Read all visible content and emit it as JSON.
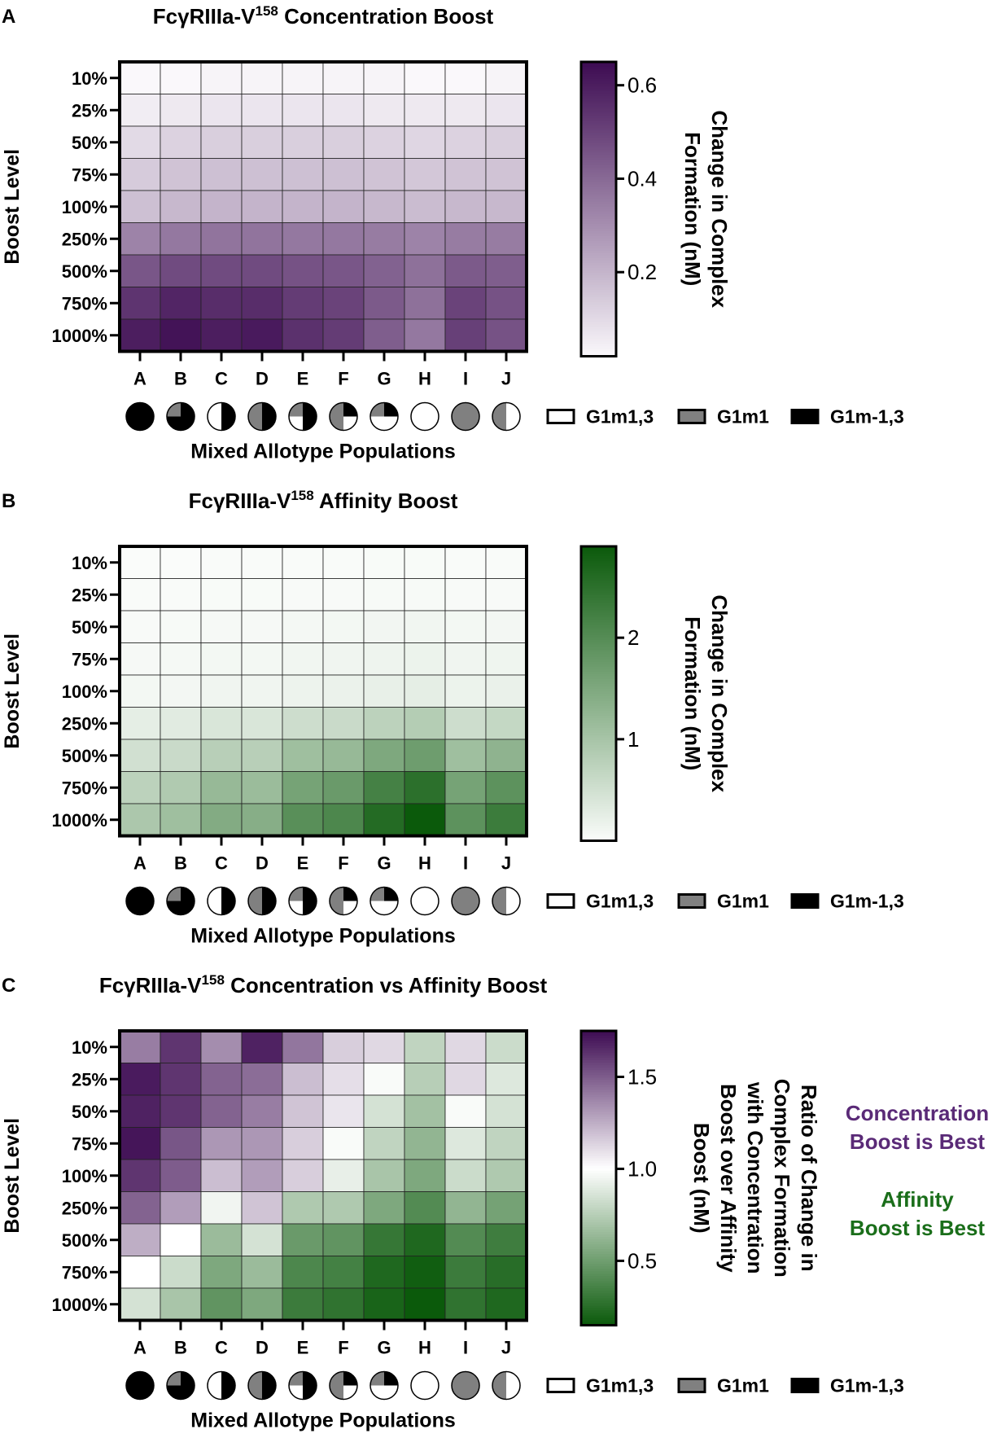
{
  "rows": [
    "10%",
    "25%",
    "50%",
    "75%",
    "100%",
    "250%",
    "500%",
    "750%",
    "1000%"
  ],
  "columns": [
    "A",
    "B",
    "C",
    "D",
    "E",
    "F",
    "G",
    "H",
    "I",
    "J"
  ],
  "pie_fractions": [
    {
      "g1m13": 0.0,
      "g1m1": 0.0,
      "g1mneg13": 1.0
    },
    {
      "g1m13": 0.0,
      "g1m1": 0.25,
      "g1mneg13": 0.75
    },
    {
      "g1m13": 0.5,
      "g1m1": 0.0,
      "g1mneg13": 0.5
    },
    {
      "g1m13": 0.0,
      "g1m1": 0.5,
      "g1mneg13": 0.5
    },
    {
      "g1m13": 0.25,
      "g1m1": 0.25,
      "g1mneg13": 0.5
    },
    {
      "g1m13": 0.25,
      "g1m1": 0.5,
      "g1mneg13": 0.25
    },
    {
      "g1m13": 0.5,
      "g1m1": 0.25,
      "g1mneg13": 0.25
    },
    {
      "g1m13": 1.0,
      "g1m1": 0.0,
      "g1mneg13": 0.0
    },
    {
      "g1m13": 0.0,
      "g1m1": 1.0,
      "g1mneg13": 0.0
    },
    {
      "g1m13": 0.5,
      "g1m1": 0.5,
      "g1mneg13": 0.0
    }
  ],
  "legend": {
    "g1m13": "G1m1,3",
    "g1m1": "G1m1",
    "g1mneg13": "G1m-1,3"
  },
  "colors": {
    "g1m13": "#ffffff",
    "g1m1": "#808080",
    "g1mneg13": "#000000"
  },
  "chart_data": [
    {
      "type": "heatmap",
      "panel_letter": "A",
      "title_pre": "FcγRIIIa-V",
      "title_sup": "158",
      "title_post": " Concentration Boost",
      "xlabel": "Mixed Allotype Populations",
      "ylabel": "Boost Level",
      "colorbar_label": [
        "Change in Complex",
        "Formation (nM)"
      ],
      "colorbar_range": [
        0.02,
        0.65
      ],
      "colorbar_ticks": [
        {
          "v": 0.6,
          "label": "0.6"
        },
        {
          "v": 0.4,
          "label": "0.4"
        },
        {
          "v": 0.2,
          "label": "0.2"
        }
      ],
      "colormap": [
        "#faf8fb",
        "#3d0b52"
      ],
      "values": [
        [
          0.02,
          0.02,
          0.03,
          0.03,
          0.03,
          0.03,
          0.03,
          0.02,
          0.02,
          0.03
        ],
        [
          0.05,
          0.06,
          0.07,
          0.07,
          0.07,
          0.07,
          0.06,
          0.06,
          0.06,
          0.07
        ],
        [
          0.1,
          0.12,
          0.13,
          0.13,
          0.13,
          0.13,
          0.12,
          0.11,
          0.12,
          0.13
        ],
        [
          0.14,
          0.16,
          0.17,
          0.17,
          0.17,
          0.17,
          0.16,
          0.15,
          0.16,
          0.16
        ],
        [
          0.17,
          0.19,
          0.2,
          0.2,
          0.2,
          0.2,
          0.19,
          0.18,
          0.19,
          0.19
        ],
        [
          0.33,
          0.36,
          0.37,
          0.37,
          0.36,
          0.36,
          0.35,
          0.33,
          0.35,
          0.35
        ],
        [
          0.45,
          0.48,
          0.48,
          0.48,
          0.46,
          0.45,
          0.42,
          0.38,
          0.44,
          0.43
        ],
        [
          0.54,
          0.58,
          0.56,
          0.56,
          0.52,
          0.5,
          0.44,
          0.38,
          0.5,
          0.46
        ],
        [
          0.6,
          0.63,
          0.6,
          0.61,
          0.55,
          0.52,
          0.43,
          0.36,
          0.51,
          0.46
        ]
      ]
    },
    {
      "type": "heatmap",
      "panel_letter": "B",
      "title_pre": "FcγRIIIa-V",
      "title_sup": "158",
      "title_post": " Affinity Boost",
      "xlabel": "Mixed Allotype Populations",
      "ylabel": "Boost Level",
      "colorbar_label": [
        "Change in Complex",
        "Formation (nM)"
      ],
      "colorbar_range": [
        0.0,
        2.9
      ],
      "colorbar_ticks": [
        {
          "v": 2,
          "label": "2"
        },
        {
          "v": 1,
          "label": "1"
        }
      ],
      "colormap": [
        "#fafcfa",
        "#0b5a0b"
      ],
      "values": [
        [
          0.0,
          0.0,
          0.01,
          0.01,
          0.01,
          0.01,
          0.02,
          0.02,
          0.01,
          0.01
        ],
        [
          0.01,
          0.01,
          0.02,
          0.02,
          0.03,
          0.03,
          0.04,
          0.04,
          0.03,
          0.03
        ],
        [
          0.03,
          0.04,
          0.05,
          0.05,
          0.07,
          0.08,
          0.1,
          0.11,
          0.08,
          0.09
        ],
        [
          0.05,
          0.06,
          0.08,
          0.08,
          0.11,
          0.12,
          0.15,
          0.17,
          0.12,
          0.13
        ],
        [
          0.08,
          0.09,
          0.12,
          0.12,
          0.16,
          0.18,
          0.22,
          0.25,
          0.17,
          0.19
        ],
        [
          0.25,
          0.3,
          0.4,
          0.4,
          0.55,
          0.6,
          0.75,
          0.85,
          0.55,
          0.65
        ],
        [
          0.5,
          0.6,
          0.8,
          0.8,
          1.1,
          1.2,
          1.5,
          1.7,
          1.1,
          1.3
        ],
        [
          0.75,
          0.9,
          1.2,
          1.15,
          1.6,
          1.75,
          2.2,
          2.5,
          1.6,
          1.9
        ],
        [
          0.95,
          1.1,
          1.45,
          1.4,
          1.95,
          2.1,
          2.6,
          2.9,
          1.9,
          2.3
        ]
      ]
    },
    {
      "type": "heatmap",
      "panel_letter": "C",
      "title_pre": "FcγRIIIa-V",
      "title_sup": "158",
      "title_post": " Concentration vs Affinity Boost",
      "xlabel": "Mixed Allotype Populations",
      "ylabel": "Boost Level",
      "colorbar_label": [
        "Ratio of Change in",
        "Complex Formation",
        "with Concentration",
        "Boost over Affinity",
        "Boost (nM)"
      ],
      "colorbar_range": [
        0.15,
        1.75
      ],
      "colorbar_ticks": [
        {
          "v": 1.5,
          "label": "1.5"
        },
        {
          "v": 1.0,
          "label": "1.0"
        },
        {
          "v": 0.5,
          "label": "0.5"
        }
      ],
      "colormap_diverging": {
        "low": "#0b5a0b",
        "mid": "#ffffff",
        "high": "#3d0b52",
        "center": 1.0
      },
      "annotation_top": [
        "Concentration",
        "Boost is Best"
      ],
      "annotation_bottom": [
        "Affinity",
        "Boost is Best"
      ],
      "annotation_top_color": "#5a2a77",
      "annotation_bottom_color": "#1a6e1a",
      "values": [
        [
          1.4,
          1.62,
          1.35,
          1.68,
          1.42,
          1.15,
          1.12,
          0.78,
          1.12,
          0.82
        ],
        [
          1.7,
          1.62,
          1.48,
          1.45,
          1.2,
          1.1,
          0.98,
          0.75,
          1.12,
          0.88
        ],
        [
          1.68,
          1.62,
          1.48,
          1.4,
          1.18,
          1.08,
          0.85,
          0.68,
          0.98,
          0.85
        ],
        [
          1.72,
          1.52,
          1.32,
          1.32,
          1.15,
          0.98,
          0.78,
          0.62,
          0.88,
          0.78
        ],
        [
          1.62,
          1.5,
          1.2,
          1.3,
          1.15,
          0.92,
          0.7,
          0.55,
          0.82,
          0.72
        ],
        [
          1.48,
          1.3,
          0.95,
          1.18,
          0.72,
          0.72,
          0.55,
          0.4,
          0.62,
          0.52
        ],
        [
          1.25,
          1.0,
          0.65,
          0.85,
          0.48,
          0.45,
          0.3,
          0.22,
          0.4,
          0.33
        ],
        [
          1.0,
          0.82,
          0.55,
          0.65,
          0.38,
          0.35,
          0.22,
          0.17,
          0.32,
          0.25
        ],
        [
          0.85,
          0.7,
          0.45,
          0.55,
          0.32,
          0.28,
          0.2,
          0.15,
          0.28,
          0.22
        ]
      ]
    }
  ]
}
